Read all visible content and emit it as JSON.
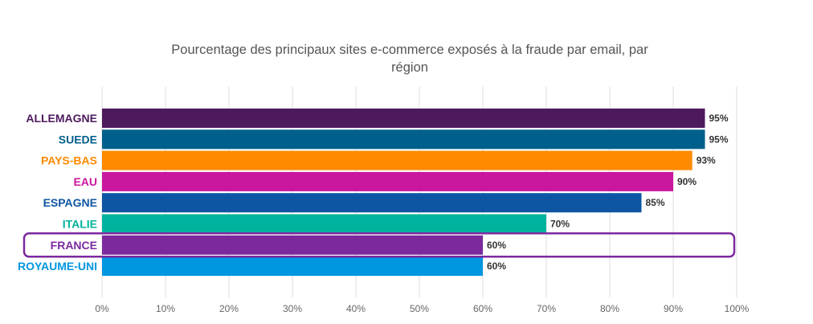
{
  "chart_data": {
    "type": "bar",
    "orientation": "horizontal",
    "title_lines": [
      "Pourcentage des principaux sites e-commerce exposés à la fraude par email, par",
      "région"
    ],
    "categories": [
      "ALLEMAGNE",
      "SUEDE",
      "PAYS-BAS",
      "EAU",
      "ESPAGNE",
      "ITALIE",
      "FRANCE",
      "ROYAUME-UNI"
    ],
    "values": [
      95,
      95,
      93,
      90,
      85,
      70,
      60,
      60
    ],
    "value_labels": [
      "95%",
      "95%",
      "93%",
      "90%",
      "85%",
      "70%",
      "60%",
      "60%"
    ],
    "colors": [
      "#4e1a5e",
      "#005f8b",
      "#ff8a00",
      "#c9179e",
      "#0e56a3",
      "#00b39e",
      "#7b2a9e",
      "#0096e0"
    ],
    "xlim": [
      0,
      100
    ],
    "x_ticks": [
      "0%",
      "10%",
      "20%",
      "30%",
      "40%",
      "50%",
      "60%",
      "70%",
      "80%",
      "90%",
      "100%"
    ],
    "grid": true,
    "highlighted_category": "FRANCE",
    "highlight_color": "#7b2a9e"
  }
}
